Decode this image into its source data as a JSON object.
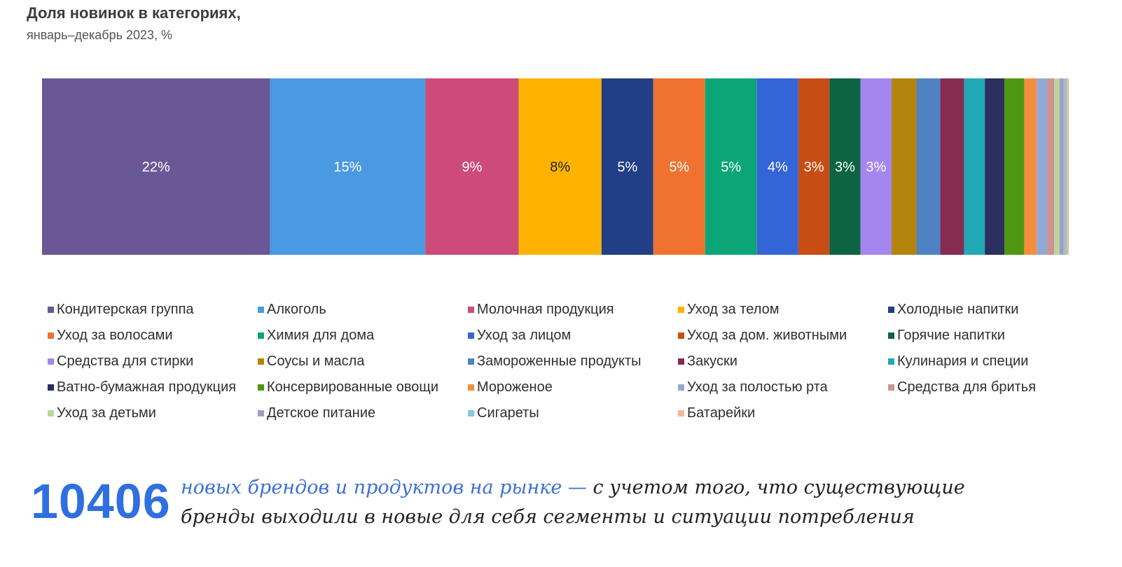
{
  "header": {
    "title": "Доля новинок в категориях,",
    "subtitle": "январь–декабрь 2023, %"
  },
  "chart_data": {
    "type": "bar",
    "orientation": "horizontal-100%-stacked",
    "title": "Доля новинок в категориях,",
    "subtitle": "январь–декабрь 2023, %",
    "legend_placement": "bottom",
    "series": [
      {
        "name": "Кондитерская группа",
        "value": 22,
        "label": "22%",
        "color": "#6a5896",
        "label_color": "#ffffff"
      },
      {
        "name": "Алкоголь",
        "value": 15,
        "label": "15%",
        "color": "#4a99e2",
        "label_color": "#ffffff"
      },
      {
        "name": "Молочная продукция",
        "value": 9,
        "label": "9%",
        "color": "#cc4b79",
        "label_color": "#ffffff"
      },
      {
        "name": "Уход за телом",
        "value": 8,
        "label": "8%",
        "color": "#ffb300",
        "label_color": "#222222"
      },
      {
        "name": "Холодные напитки",
        "value": 5,
        "label": "5%",
        "color": "#213f86",
        "label_color": "#ffffff"
      },
      {
        "name": "Уход за волосами",
        "value": 5,
        "label": "5%",
        "color": "#ef7230",
        "label_color": "#ffffff"
      },
      {
        "name": "Химия для дома",
        "value": 5,
        "label": "5%",
        "color": "#0ca578",
        "label_color": "#ffffff"
      },
      {
        "name": "Уход за лицом",
        "value": 4,
        "label": "4%",
        "color": "#3465d6",
        "label_color": "#ffffff"
      },
      {
        "name": "Уход за дом. животными",
        "value": 3,
        "label": "3%",
        "color": "#c84d15",
        "label_color": "#ffffff"
      },
      {
        "name": "Горячие напитки",
        "value": 3,
        "label": "3%",
        "color": "#0d6445",
        "label_color": "#ffffff"
      },
      {
        "name": "Средства для стирки",
        "value": 3,
        "label": "3%",
        "color": "#a486ef",
        "label_color": "#ffffff"
      },
      {
        "name": "Соусы и масла",
        "value": 2.4,
        "label": "",
        "color": "#b3840c",
        "label_color": "#ffffff"
      },
      {
        "name": "Замороженные продукты",
        "value": 2.3,
        "label": "",
        "color": "#4f82c2",
        "label_color": "#ffffff"
      },
      {
        "name": "Закуски",
        "value": 2.3,
        "label": "",
        "color": "#862c51",
        "label_color": "#ffffff"
      },
      {
        "name": "Кулинария и специи",
        "value": 2.0,
        "label": "",
        "color": "#20a8b4",
        "label_color": "#ffffff"
      },
      {
        "name": "Ватно-бумажная продукция",
        "value": 1.9,
        "label": "",
        "color": "#2a2f5e",
        "label_color": "#ffffff"
      },
      {
        "name": "Консервированные овощи",
        "value": 1.9,
        "label": "",
        "color": "#4f9712",
        "label_color": "#ffffff"
      },
      {
        "name": "Мороженое",
        "value": 1.2,
        "label": "",
        "color": "#f58d3f",
        "label_color": "#ffffff"
      },
      {
        "name": "Уход за полостью рта",
        "value": 1.0,
        "label": "",
        "color": "#93a8d4",
        "label_color": "#ffffff"
      },
      {
        "name": "Средства для бритья",
        "value": 0.7,
        "label": "",
        "color": "#cf9393",
        "label_color": "#ffffff"
      },
      {
        "name": "Уход за детьми",
        "value": 0.5,
        "label": "",
        "color": "#b9d69b",
        "label_color": "#ffffff"
      },
      {
        "name": "Детское питание",
        "value": 0.4,
        "label": "",
        "color": "#a69cc3",
        "label_color": "#ffffff"
      },
      {
        "name": "Сигареты",
        "value": 0.3,
        "label": "",
        "color": "#8fc6d6",
        "label_color": "#ffffff"
      },
      {
        "name": "Батарейки",
        "value": 0.2,
        "label": "",
        "color": "#f4b796",
        "label_color": "#ffffff"
      }
    ]
  },
  "footer": {
    "number": "10406",
    "highlight": "новых брендов и продуктов на рынке —",
    "text": " с учетом того, что существующие бренды выходили в новые для себя сегменты и ситуации потребления"
  }
}
